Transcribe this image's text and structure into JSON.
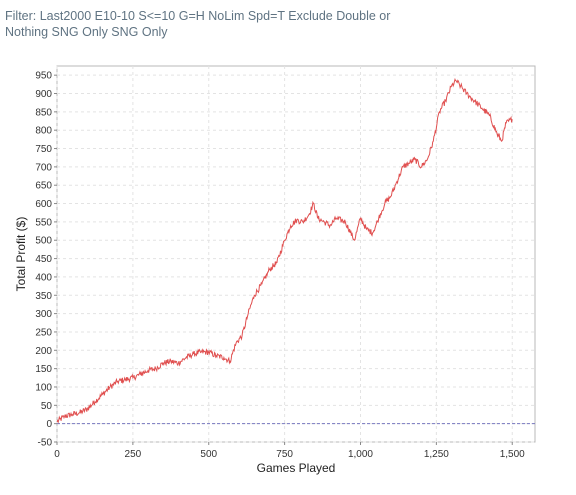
{
  "filter": {
    "line1": "Filter: Last2000 E10-10 S<=10 G=H NoLim Spd=T Exclude Double or",
    "line2": "Nothing SNG Only SNG Only"
  },
  "chart_data": {
    "type": "line",
    "xlabel": "Games Played",
    "ylabel": "Total Profit ($)",
    "xlim": [
      0,
      1575
    ],
    "ylim": [
      -50,
      975
    ],
    "x_ticks": [
      0,
      250,
      500,
      750,
      1000,
      1250,
      1500
    ],
    "x_tick_labels": [
      "0",
      "250",
      "500",
      "750",
      "1,000",
      "1,250",
      "1,500"
    ],
    "y_ticks": [
      -50,
      0,
      50,
      100,
      150,
      200,
      250,
      300,
      350,
      400,
      450,
      500,
      550,
      600,
      650,
      700,
      750,
      800,
      850,
      900,
      950
    ],
    "y_tick_labels": [
      "-50",
      "0",
      "50",
      "100",
      "150",
      "200",
      "250",
      "300",
      "350",
      "400",
      "450",
      "500",
      "550",
      "600",
      "650",
      "700",
      "750",
      "800",
      "850",
      "900",
      "950"
    ],
    "grid": true,
    "line_color": "#e05050",
    "zero_line_color": "#7878c0",
    "series": [
      {
        "x": [
          0,
          25,
          50,
          75,
          100,
          125,
          150,
          175,
          200,
          225,
          250,
          275,
          300,
          325,
          350,
          375,
          400,
          425,
          450,
          475,
          500,
          525,
          550,
          570,
          590,
          610,
          630,
          650,
          675,
          700,
          725,
          750,
          770,
          790,
          810,
          830,
          845,
          860,
          880,
          900,
          920,
          950,
          980,
          1000,
          1020,
          1040,
          1060,
          1080,
          1100,
          1120,
          1140,
          1160,
          1180,
          1200,
          1220,
          1240,
          1260,
          1280,
          1300,
          1315,
          1330,
          1350,
          1375,
          1400,
          1425,
          1450,
          1465,
          1480,
          1500
        ],
        "y": [
          5,
          20,
          25,
          30,
          40,
          60,
          80,
          100,
          115,
          120,
          125,
          135,
          145,
          150,
          165,
          170,
          165,
          180,
          190,
          195,
          195,
          185,
          180,
          170,
          220,
          240,
          300,
          350,
          380,
          420,
          440,
          500,
          540,
          555,
          550,
          570,
          600,
          560,
          550,
          540,
          560,
          550,
          500,
          560,
          530,
          520,
          560,
          600,
          620,
          660,
          700,
          710,
          720,
          700,
          720,
          770,
          850,
          880,
          920,
          935,
          920,
          900,
          880,
          860,
          840,
          790,
          770,
          820,
          830
        ]
      }
    ]
  }
}
